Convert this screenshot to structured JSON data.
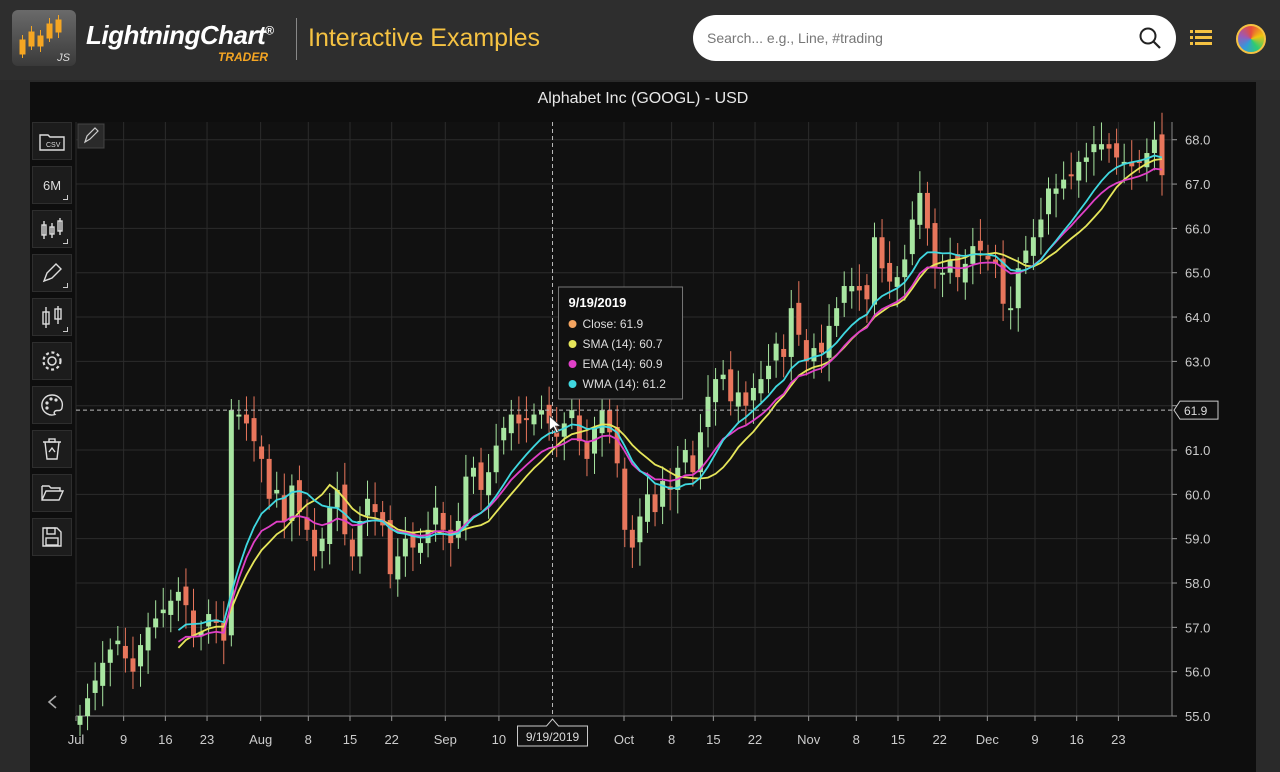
{
  "header": {
    "brand": "LightningChart",
    "brand_mark": "®",
    "brand_sub": "TRADER",
    "logo_js": "JS",
    "section_title": "Interactive Examples",
    "search_placeholder": "Search... e.g., Line, #trading"
  },
  "toolbar": {
    "timeframe_label": "6M",
    "csv_label": "CSV"
  },
  "colors": {
    "up": "#a8e6a1",
    "down": "#e8765c",
    "sma": "#e6e65a",
    "ema": "#e040c8",
    "wma": "#40d8e0",
    "accent": "#f5c242"
  },
  "chart_data": {
    "type": "candlestick",
    "title": "Alphabet Inc (GOOGL) - USD",
    "ylim": [
      55.0,
      68.4
    ],
    "y_ticks": [
      "55.0",
      "56.0",
      "57.0",
      "58.0",
      "59.0",
      "60.0",
      "61.0",
      "62.0",
      "63.0",
      "64.0",
      "65.0",
      "66.0",
      "67.0",
      "68.0"
    ],
    "x_tick_labels": [
      "Jul",
      "9",
      "16",
      "23",
      "Aug",
      "8",
      "15",
      "22",
      "Sep",
      "10",
      "Oct",
      "8",
      "15",
      "22",
      "Nov",
      "8",
      "15",
      "22",
      "Dec",
      "9",
      "16",
      "23"
    ],
    "x_tick_days": [
      0,
      8,
      15,
      22,
      31,
      39,
      46,
      53,
      62,
      71,
      92,
      100,
      107,
      114,
      123,
      131,
      138,
      145,
      153,
      161,
      168,
      175
    ],
    "x_range_days": [
      0,
      184
    ],
    "crosshair": {
      "date_label": "9/19/2019",
      "day": 80,
      "value_label": "61.9",
      "value": 61.9
    },
    "tooltip": {
      "date": "9/19/2019",
      "rows": [
        {
          "label": "Close: 61.9",
          "color": "#f4a460"
        },
        {
          "label": "SMA (14): 60.7",
          "color": "#e6e65a"
        },
        {
          "label": "EMA (14): 60.9",
          "color": "#e040c8"
        },
        {
          "label": "WMA (14): 61.2",
          "color": "#40d8e0"
        }
      ]
    },
    "closes": [
      55.0,
      55.4,
      55.8,
      56.2,
      56.5,
      56.7,
      56.3,
      56.0,
      56.6,
      57.0,
      57.2,
      57.4,
      57.6,
      57.8,
      57.5,
      56.8,
      56.9,
      57.3,
      57.1,
      56.7,
      61.9,
      61.8,
      61.6,
      61.2,
      60.8,
      59.9,
      60.1,
      59.4,
      60.2,
      59.6,
      59.2,
      58.6,
      59.0,
      59.7,
      60.1,
      59.1,
      58.6,
      59.4,
      59.9,
      59.6,
      59.3,
      58.2,
      58.6,
      59.0,
      58.8,
      58.9,
      59.2,
      59.7,
      59.2,
      58.9,
      59.4,
      60.4,
      60.6,
      60.1,
      60.5,
      61.1,
      61.5,
      61.8,
      61.6,
      61.7,
      61.8,
      61.9,
      61.6,
      61.3,
      61.6,
      61.9,
      61.2,
      60.8,
      61.5,
      61.9,
      61.4,
      60.7,
      59.2,
      58.8,
      59.5,
      60.0,
      59.6,
      60.3,
      60.1,
      60.6,
      61.0,
      60.5,
      61.4,
      62.2,
      62.6,
      62.7,
      62.1,
      62.3,
      62.0,
      62.4,
      62.6,
      62.9,
      63.4,
      63.1,
      64.2,
      63.6,
      63.0,
      63.3,
      63.2,
      63.8,
      64.2,
      64.7,
      64.7,
      64.6,
      64.4,
      65.8,
      65.1,
      64.8,
      64.9,
      65.3,
      66.2,
      66.8,
      66.0,
      65.1,
      65.0,
      65.3,
      64.9,
      65.2,
      65.6,
      65.5,
      65.3,
      65.2,
      64.3,
      64.2,
      65.1,
      65.5,
      65.8,
      66.2,
      66.9,
      66.9,
      67.1,
      67.2,
      67.5,
      67.6,
      67.9,
      67.9,
      67.8,
      67.6,
      67.5,
      67.4,
      67.5,
      67.7,
      68.0,
      67.2
    ],
    "sma14": [
      null,
      null,
      null,
      null,
      null,
      null,
      null,
      null,
      null,
      null,
      null,
      null,
      null,
      56.6,
      56.7,
      56.7,
      56.8,
      56.8,
      56.8,
      56.8,
      57.3,
      57.8,
      58.2,
      58.5,
      58.9,
      59.1,
      59.3,
      59.5,
      59.8,
      59.9,
      59.3,
      59.1,
      59.2,
      59.4,
      59.3,
      59.2,
      59.1,
      59.2,
      59.2,
      59.3,
      59.2,
      59.0,
      59.0,
      59.0,
      59.0,
      58.9,
      59.0,
      59.1,
      59.2,
      59.2,
      59.3,
      59.4,
      59.6,
      59.8,
      60.0,
      60.2,
      60.4,
      60.7,
      60.9,
      61.1,
      61.3,
      61.4,
      61.5,
      61.6,
      61.7,
      61.7,
      61.7,
      61.6,
      61.4,
      61.2,
      61.0,
      60.8,
      60.6,
      60.6,
      60.6,
      60.6,
      60.7,
      60.9,
      61.2,
      61.5,
      61.7,
      61.9,
      62.1,
      62.3,
      62.5,
      62.7,
      62.9,
      63.1,
      63.3,
      63.5,
      63.7,
      63.9,
      64.1,
      64.3,
      64.5,
      64.7,
      64.8,
      65.0,
      65.1,
      65.2,
      65.3,
      65.3,
      65.3,
      65.3,
      65.3,
      65.3,
      65.3,
      65.3,
      65.3,
      65.3,
      65.4,
      65.6,
      65.8,
      66.0,
      66.2,
      66.5,
      66.7,
      66.9,
      67.1,
      67.2,
      67.3,
      67.4,
      67.4,
      67.4
    ]
  }
}
